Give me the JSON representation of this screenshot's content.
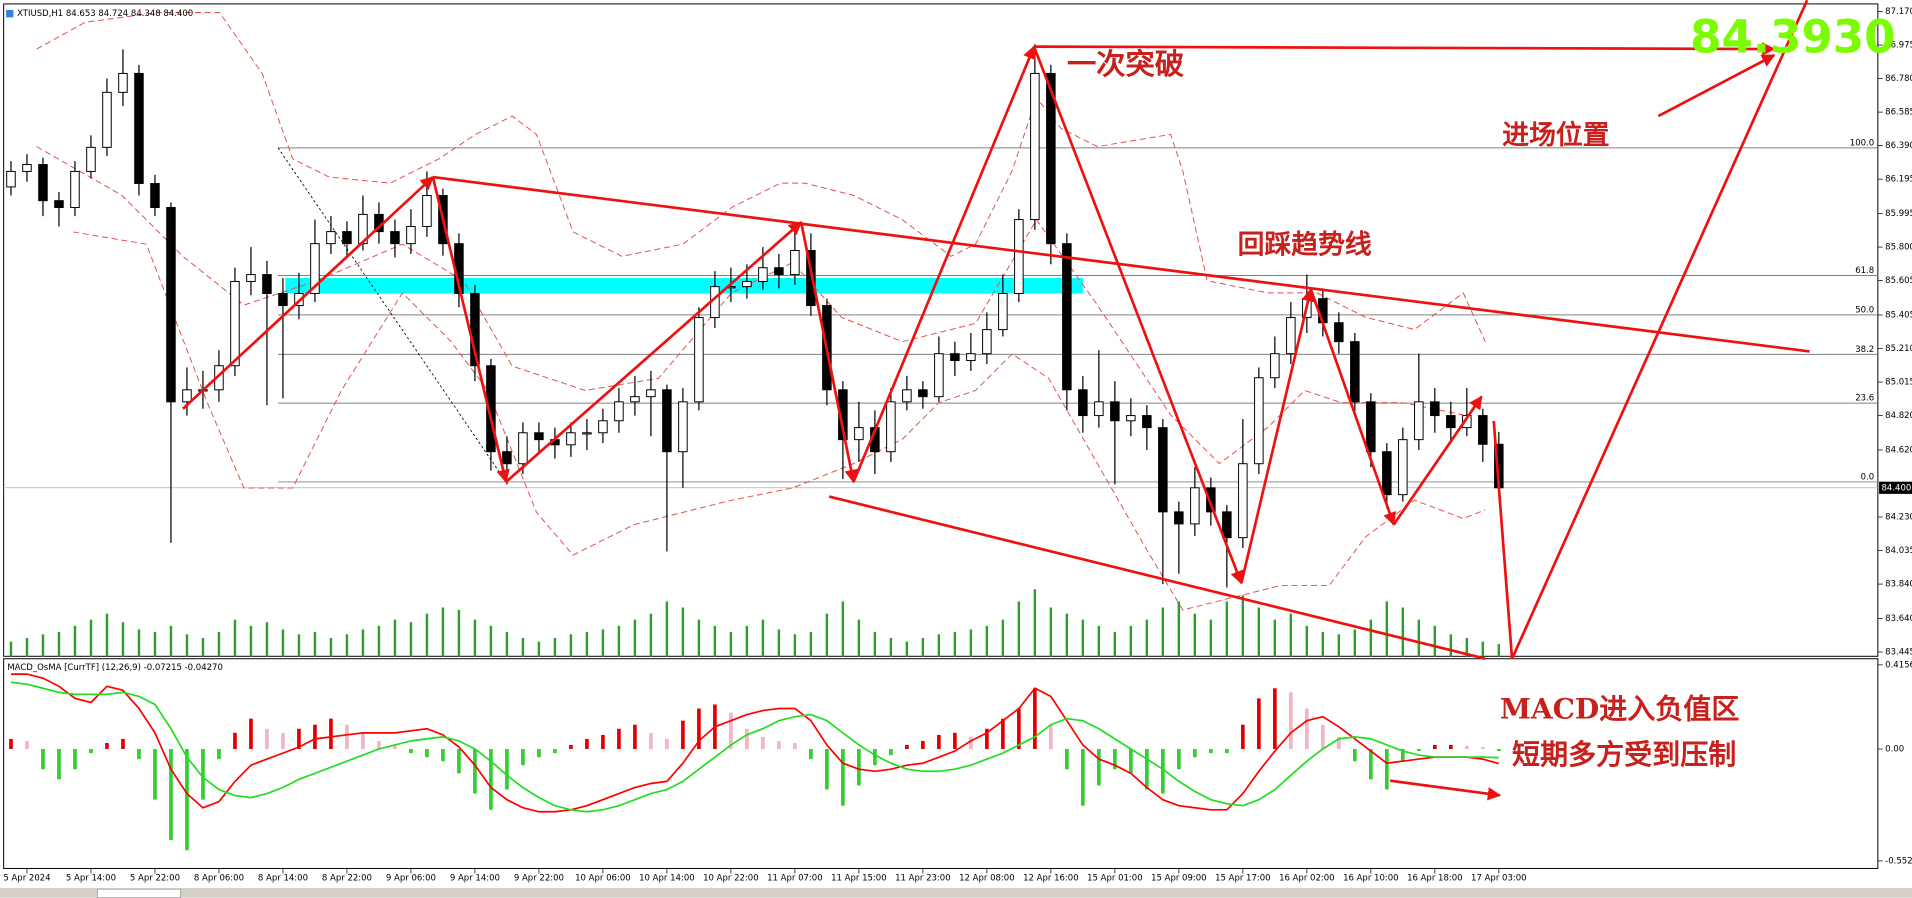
{
  "chart_data": [
    {
      "type": "candlestick",
      "title": "XTIUSD,H1  84.653 84.724 84.348 84.400",
      "categories": [
        null,
        "5 Apr 2024",
        null,
        null,
        null,
        "5 Apr 14:00",
        null,
        null,
        null,
        "5 Apr 22:00",
        null,
        null,
        null,
        "8 Apr 06:00",
        null,
        null,
        null,
        "8 Apr 14:00",
        null,
        null,
        null,
        "8 Apr 22:00",
        null,
        null,
        null,
        "9 Apr 06:00",
        null,
        null,
        null,
        "9 Apr 14:00",
        null,
        null,
        null,
        "9 Apr 22:00",
        null,
        null,
        null,
        "10 Apr 06:00",
        null,
        null,
        null,
        "10 Apr 14:00",
        null,
        null,
        null,
        "10 Apr 22:00",
        null,
        null,
        null,
        "11 Apr 07:00",
        null,
        null,
        null,
        "11 Apr 15:00",
        null,
        null,
        null,
        "11 Apr 23:00",
        null,
        null,
        null,
        "12 Apr 08:00",
        null,
        null,
        null,
        "12 Apr 16:00",
        null,
        null,
        null,
        "15 Apr 01:00",
        null,
        null,
        null,
        "15 Apr 09:00",
        null,
        null,
        null,
        "15 Apr 17:00",
        null,
        null,
        null,
        "16 Apr 02:00",
        null,
        null,
        null,
        "16 Apr 10:00",
        null,
        null,
        null,
        "16 Apr 18:00",
        null,
        null,
        null,
        "17 Apr 03:00"
      ],
      "open": [
        86.15,
        86.24,
        86.28,
        86.07,
        86.03,
        86.24,
        86.38,
        86.7,
        86.81,
        86.17,
        86.03,
        84.9,
        84.97,
        84.97,
        85.11,
        85.6,
        85.64,
        85.53,
        85.46,
        85.53,
        85.82,
        85.89,
        85.82,
        85.99,
        85.89,
        85.82,
        85.92,
        86.1,
        85.82,
        85.53,
        85.11,
        84.61,
        84.54,
        84.72,
        84.68,
        84.65,
        84.72,
        84.72,
        84.79,
        84.9,
        84.93,
        84.97,
        84.61,
        84.9,
        85.39,
        85.57,
        85.57,
        85.6,
        85.68,
        85.64,
        85.78,
        85.46,
        84.97,
        84.68,
        84.75,
        84.61,
        84.9,
        84.97,
        84.93,
        85.18,
        85.14,
        85.18,
        85.32,
        85.53,
        85.96,
        86.81,
        85.82,
        84.97,
        84.82,
        84.9,
        84.79,
        84.82,
        84.75,
        84.26,
        84.19,
        84.4,
        84.26,
        84.11,
        84.54,
        85.04,
        85.18,
        85.39,
        85.5,
        85.36,
        85.25,
        84.9,
        84.61,
        84.36,
        84.68,
        84.9,
        84.82,
        84.75,
        84.82,
        84.653
      ],
      "high": [
        86.3,
        86.34,
        86.32,
        86.12,
        86.3,
        86.45,
        86.78,
        86.95,
        86.86,
        86.22,
        86.06,
        85.1,
        85.08,
        85.2,
        85.68,
        85.8,
        85.72,
        85.62,
        85.65,
        85.96,
        85.98,
        85.95,
        86.1,
        86.06,
        85.96,
        86.02,
        86.24,
        86.14,
        85.88,
        85.58,
        85.15,
        84.7,
        84.78,
        84.78,
        84.75,
        84.78,
        84.8,
        84.86,
        84.98,
        85.05,
        85.08,
        85.0,
        84.98,
        85.45,
        85.66,
        85.68,
        85.7,
        85.8,
        85.76,
        85.92,
        85.88,
        85.5,
        85.02,
        84.9,
        84.85,
        84.98,
        85.05,
        85.02,
        85.28,
        85.25,
        85.3,
        85.42,
        85.64,
        86.02,
        86.98,
        86.86,
        85.88,
        85.05,
        85.2,
        85.02,
        84.92,
        84.88,
        84.8,
        84.32,
        84.52,
        84.46,
        84.3,
        84.8,
        85.1,
        85.28,
        85.48,
        85.64,
        85.56,
        85.42,
        85.3,
        84.95,
        84.66,
        84.75,
        85.18,
        84.98,
        84.9,
        84.98,
        84.86,
        84.724
      ],
      "low": [
        86.1,
        86.18,
        85.98,
        85.92,
        85.98,
        86.2,
        86.33,
        86.62,
        86.1,
        85.98,
        84.08,
        84.82,
        84.86,
        84.9,
        85.05,
        85.52,
        84.88,
        84.92,
        85.38,
        85.48,
        85.76,
        85.74,
        85.78,
        85.82,
        85.74,
        85.76,
        85.86,
        85.75,
        85.45,
        85.02,
        84.5,
        84.42,
        84.48,
        84.6,
        84.57,
        84.58,
        84.62,
        84.66,
        84.72,
        84.82,
        84.7,
        84.03,
        84.4,
        84.85,
        85.33,
        85.48,
        85.5,
        85.55,
        85.56,
        85.58,
        85.4,
        84.88,
        84.45,
        84.55,
        84.48,
        84.55,
        84.85,
        84.86,
        84.9,
        85.05,
        85.08,
        85.12,
        85.28,
        85.48,
        85.9,
        85.7,
        84.85,
        84.72,
        84.75,
        84.42,
        84.7,
        84.62,
        83.84,
        83.9,
        84.12,
        84.18,
        83.82,
        84.05,
        84.48,
        84.98,
        85.12,
        85.3,
        85.28,
        85.18,
        84.84,
        84.52,
        84.28,
        84.32,
        84.62,
        84.72,
        84.66,
        84.7,
        84.55,
        84.348
      ],
      "close": [
        86.24,
        86.28,
        86.07,
        86.03,
        86.24,
        86.38,
        86.7,
        86.81,
        86.17,
        86.03,
        84.9,
        84.97,
        84.97,
        85.11,
        85.6,
        85.64,
        85.53,
        85.46,
        85.53,
        85.82,
        85.89,
        85.82,
        85.99,
        85.89,
        85.82,
        85.92,
        86.1,
        85.82,
        85.53,
        85.11,
        84.61,
        84.54,
        84.72,
        84.68,
        84.65,
        84.72,
        84.72,
        84.79,
        84.9,
        84.93,
        84.97,
        84.61,
        84.9,
        85.39,
        85.57,
        85.57,
        85.6,
        85.68,
        85.64,
        85.78,
        85.46,
        84.97,
        84.68,
        84.75,
        84.61,
        84.9,
        84.97,
        84.93,
        85.18,
        85.14,
        85.18,
        85.32,
        85.53,
        85.96,
        86.81,
        85.82,
        84.97,
        84.82,
        84.9,
        84.79,
        84.82,
        84.75,
        84.26,
        84.19,
        84.4,
        84.26,
        84.11,
        84.54,
        85.04,
        85.18,
        85.39,
        85.5,
        85.36,
        85.25,
        84.9,
        84.61,
        84.36,
        84.68,
        84.9,
        84.82,
        84.75,
        84.82,
        84.653,
        84.4
      ],
      "up_color": "#ffffff",
      "down_color": "#000000",
      "wick_color": "#000000",
      "ylim": [
        83.42,
        87.2
      ],
      "yticks": [
        {
          "value": 87.17,
          "label": "87.170"
        },
        {
          "value": 86.975,
          "label": "86.975"
        },
        {
          "value": 86.78,
          "label": "86.780"
        },
        {
          "value": 86.585,
          "label": "86.585"
        },
        {
          "value": 86.39,
          "label": "86.390"
        },
        {
          "value": 86.195,
          "label": "86.195"
        },
        {
          "value": 85.995,
          "label": "85.995"
        },
        {
          "value": 85.8,
          "label": "85.800"
        },
        {
          "value": 85.605,
          "label": "85.605"
        },
        {
          "value": 85.405,
          "label": "85.405"
        },
        {
          "value": 85.21,
          "label": "85.210"
        },
        {
          "value": 85.015,
          "label": "85.015"
        },
        {
          "value": 84.82,
          "label": "84.820"
        },
        {
          "value": 84.62,
          "label": "84.620"
        },
        {
          "value": 84.23,
          "label": "84.230"
        },
        {
          "value": 84.035,
          "label": "84.035"
        },
        {
          "value": 83.84,
          "label": "83.840"
        },
        {
          "value": 83.64,
          "label": "83.640"
        },
        {
          "value": 83.445,
          "label": "83.445"
        }
      ],
      "last_price": {
        "value": 84.4,
        "label": "84.400"
      },
      "fibonacci": {
        "high": 86.377,
        "low": 84.434,
        "color": "#808080",
        "levels": [
          {
            "value": 100,
            "label": "100.0"
          },
          {
            "value": 61.8,
            "label": "61.8"
          },
          {
            "value": 50,
            "label": "50.0"
          },
          {
            "value": 38.2,
            "label": "38.2"
          },
          {
            "value": 23.6,
            "label": "23.6"
          },
          {
            "value": 0,
            "label": "0.0"
          }
        ]
      },
      "zone": [
        85.53,
        85.62
      ],
      "zone_color": "#00ffff",
      "volume": {
        "color": "#2e9e2e",
        "values": [
          12,
          15,
          18,
          20,
          25,
          30,
          35,
          28,
          22,
          20,
          25,
          18,
          15,
          20,
          30,
          25,
          28,
          22,
          18,
          20,
          15,
          18,
          22,
          25,
          30,
          28,
          35,
          40,
          38,
          30,
          25,
          20,
          15,
          12,
          15,
          18,
          20,
          22,
          25,
          30,
          35,
          45,
          40,
          30,
          25,
          20,
          25,
          30,
          22,
          18,
          20,
          35,
          45,
          30,
          20,
          15,
          12,
          15,
          18,
          20,
          22,
          25,
          30,
          45,
          55,
          40,
          35,
          30,
          25,
          20,
          25,
          30,
          40,
          45,
          35,
          30,
          45,
          50,
          40,
          30,
          35,
          25,
          20,
          18,
          22,
          30,
          45,
          40,
          30,
          25,
          18,
          15,
          12,
          10
        ]
      }
    },
    {
      "type": "macd",
      "title": "MACD_OsMA [CurrTF] (12,26,9) -0.07215 -0.04270",
      "ylim": [
        -0.59,
        0.446
      ],
      "yticks": [
        0.41561,
        {
          "value": 0,
          "label": "0.00"
        },
        -0.55272
      ],
      "histogram": {
        "rising_color": "#e00000",
        "falling_color": "#f5b5c0",
        "negative_color": "#33cc33",
        "values": [
          0.05,
          0.04,
          -0.1,
          -0.15,
          -0.1,
          -0.02,
          0.03,
          0.05,
          -0.05,
          -0.25,
          -0.45,
          -0.5,
          -0.25,
          -0.05,
          0.08,
          0.15,
          0.1,
          0.08,
          0.1,
          0.12,
          0.15,
          0.12,
          0.08,
          0.04,
          0.02,
          -0.02,
          -0.04,
          -0.06,
          -0.12,
          -0.22,
          -0.3,
          -0.2,
          -0.08,
          -0.04,
          -0.02,
          0.02,
          0.05,
          0.07,
          0.1,
          0.12,
          0.08,
          0.05,
          0.14,
          0.2,
          0.22,
          0.18,
          0.1,
          0.06,
          0.04,
          0.03,
          -0.05,
          -0.2,
          -0.28,
          -0.18,
          -0.08,
          -0.03,
          0.02,
          0.04,
          0.07,
          0.08,
          0.06,
          0.1,
          0.15,
          0.2,
          0.3,
          0.12,
          -0.1,
          -0.28,
          -0.18,
          -0.1,
          -0.12,
          -0.2,
          -0.22,
          -0.1,
          -0.04,
          -0.02,
          -0.02,
          0.12,
          0.25,
          0.3,
          0.28,
          0.2,
          0.12,
          0.06,
          -0.06,
          -0.15,
          -0.2,
          -0.06,
          -0.01,
          0.02,
          0.02,
          0.015,
          0.01,
          -0.01
        ]
      },
      "series": [
        {
          "color": "#ff0000",
          "values": [
            0.37,
            0.37,
            0.35,
            0.31,
            0.25,
            0.23,
            0.31,
            0.29,
            0.2,
            0.08,
            -0.1,
            -0.22,
            -0.29,
            -0.26,
            -0.16,
            -0.08,
            -0.05,
            -0.02,
            0.01,
            0.05,
            0.06,
            0.07,
            0.08,
            0.08,
            0.08,
            0.09,
            0.1,
            0.07,
            0.01,
            -0.08,
            -0.19,
            -0.25,
            -0.29,
            -0.31,
            -0.31,
            -0.3,
            -0.28,
            -0.25,
            -0.22,
            -0.19,
            -0.17,
            -0.16,
            -0.07,
            0.04,
            0.11,
            0.14,
            0.17,
            0.19,
            0.2,
            0.2,
            0.14,
            0.02,
            -0.07,
            -0.1,
            -0.11,
            -0.1,
            -0.08,
            -0.07,
            -0.04,
            -0.01,
            0.04,
            0.08,
            0.14,
            0.2,
            0.3,
            0.26,
            0.14,
            0.02,
            -0.05,
            -0.08,
            -0.12,
            -0.19,
            -0.25,
            -0.28,
            -0.29,
            -0.3,
            -0.3,
            -0.22,
            -0.11,
            -0.01,
            0.08,
            0.14,
            0.16,
            0.11,
            0.05,
            -0.01,
            -0.07,
            -0.06,
            -0.05,
            -0.04,
            -0.04,
            -0.04,
            -0.05,
            -0.07215
          ]
        },
        {
          "color": "#22dd22",
          "values": [
            0.33,
            0.32,
            0.3,
            0.28,
            0.27,
            0.27,
            0.27,
            0.28,
            0.26,
            0.22,
            0.1,
            -0.04,
            -0.14,
            -0.2,
            -0.23,
            -0.24,
            -0.22,
            -0.19,
            -0.15,
            -0.12,
            -0.09,
            -0.06,
            -0.03,
            0.0,
            0.02,
            0.04,
            0.05,
            0.06,
            0.04,
            0.0,
            -0.06,
            -0.13,
            -0.19,
            -0.24,
            -0.28,
            -0.3,
            -0.31,
            -0.3,
            -0.28,
            -0.25,
            -0.22,
            -0.2,
            -0.16,
            -0.1,
            -0.04,
            0.02,
            0.07,
            0.1,
            0.14,
            0.16,
            0.17,
            0.14,
            0.08,
            0.02,
            -0.03,
            -0.07,
            -0.1,
            -0.11,
            -0.11,
            -0.1,
            -0.08,
            -0.05,
            -0.02,
            0.02,
            0.06,
            0.12,
            0.15,
            0.14,
            0.1,
            0.05,
            0.0,
            -0.05,
            -0.1,
            -0.16,
            -0.21,
            -0.25,
            -0.27,
            -0.28,
            -0.25,
            -0.2,
            -0.13,
            -0.06,
            0.0,
            0.05,
            0.06,
            0.05,
            0.02,
            -0.01,
            -0.03,
            -0.04,
            -0.04,
            -0.04,
            -0.04,
            -0.0427
          ]
        }
      ]
    }
  ],
  "annotations": {
    "breakout": "一次突破",
    "entry": "进场位置",
    "pullback": "回踩趋势线",
    "macd_negative": "MACD进入负值区",
    "bulls_suppressed": "短期多方受到压制",
    "entry_price": "84.3930"
  }
}
